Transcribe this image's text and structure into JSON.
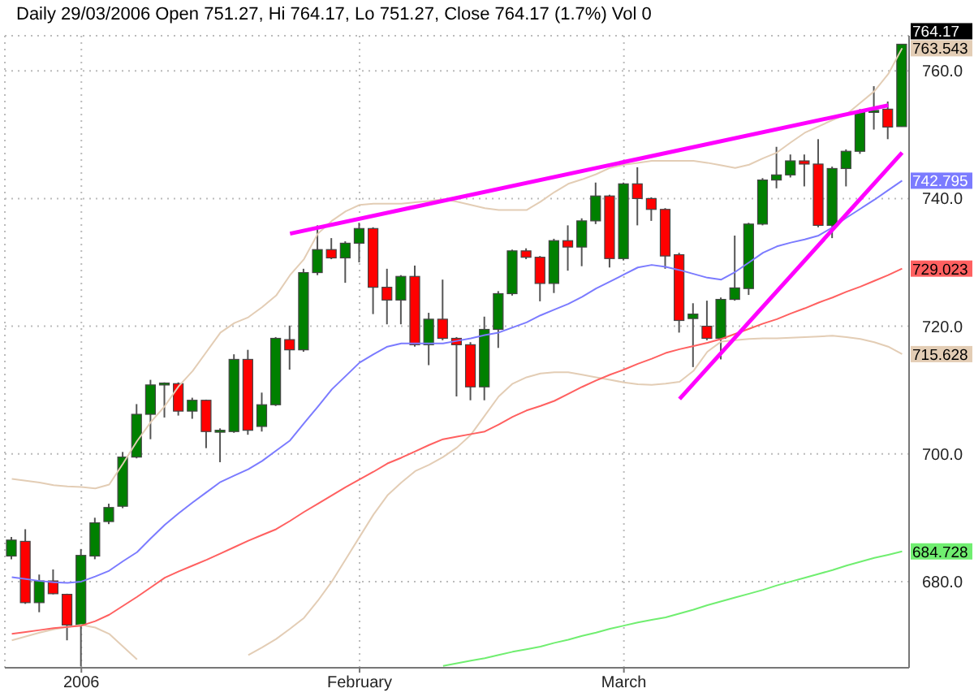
{
  "chart_data": {
    "type": "candlestick",
    "title": "Daily 29/03/2006 Open 751.27, Hi 764.17, Lo 751.27, Close 764.17 (1.7%) Vol 0",
    "categories": [
      null,
      null,
      null,
      null,
      null,
      "2006",
      null,
      null,
      null,
      null,
      null,
      null,
      null,
      null,
      null,
      null,
      null,
      null,
      null,
      null,
      null,
      null,
      null,
      null,
      null,
      "February",
      null,
      null,
      null,
      null,
      null,
      null,
      null,
      null,
      null,
      null,
      null,
      null,
      null,
      null,
      null,
      null,
      null,
      null,
      "March",
      null,
      null,
      null,
      null,
      null,
      null,
      null,
      null,
      null,
      null,
      null,
      null,
      null,
      null,
      null,
      null,
      null,
      null,
      null,
      null
    ],
    "ohlc": [
      [
        684.0,
        687.0,
        683.5,
        686.5
      ],
      [
        686.3,
        688.2,
        676.5,
        676.7
      ],
      [
        676.7,
        681.1,
        675.2,
        680.1
      ],
      [
        680.1,
        681.9,
        678.0,
        678.1
      ],
      [
        678.0,
        678.1,
        670.8,
        673.2
      ],
      [
        673.2,
        685.1,
        666.7,
        684.1
      ],
      [
        684.0,
        690.0,
        683.5,
        689.2
      ],
      [
        689.4,
        692.2,
        689.0,
        691.6
      ],
      [
        691.8,
        700.3,
        691.5,
        699.5
      ],
      [
        699.5,
        707.8,
        699.3,
        706.2
      ],
      [
        706.2,
        711.6,
        702.3,
        710.8
      ],
      [
        710.9,
        711.2,
        705.7,
        711.1
      ],
      [
        711.0,
        711.2,
        706.0,
        706.7
      ],
      [
        706.7,
        708.8,
        705.5,
        708.4
      ],
      [
        708.4,
        708.5,
        700.9,
        703.5
      ],
      [
        703.5,
        704.0,
        698.7,
        703.7
      ],
      [
        703.5,
        715.6,
        703.3,
        714.8
      ],
      [
        714.8,
        716.3,
        703.0,
        703.7
      ],
      [
        704.3,
        709.6,
        703.5,
        707.7
      ],
      [
        707.7,
        718.3,
        707.5,
        718.1
      ],
      [
        717.9,
        720.1,
        713.2,
        716.3
      ],
      [
        716.3,
        729.0,
        716.0,
        728.4
      ],
      [
        728.4,
        735.8,
        728.0,
        732.0
      ],
      [
        732.0,
        733.8,
        730.5,
        730.7
      ],
      [
        730.7,
        733.3,
        726.8,
        733.0
      ],
      [
        733.0,
        736.2,
        730.0,
        735.3
      ],
      [
        735.3,
        735.5,
        721.9,
        726.1
      ],
      [
        726.1,
        729.0,
        720.3,
        724.1
      ],
      [
        724.1,
        728.0,
        720.3,
        727.8
      ],
      [
        727.8,
        729.5,
        716.8,
        717.1
      ],
      [
        717.1,
        722.1,
        713.9,
        721.1
      ],
      [
        721.1,
        727.3,
        717.8,
        718.1
      ],
      [
        718.1,
        718.3,
        709.0,
        717.1
      ],
      [
        717.1,
        717.5,
        708.4,
        710.5
      ],
      [
        710.5,
        721.5,
        708.4,
        719.5
      ],
      [
        719.5,
        725.5,
        716.6,
        725.1
      ],
      [
        725.1,
        732.0,
        724.8,
        731.8
      ],
      [
        731.8,
        732.2,
        730.5,
        730.8
      ],
      [
        730.8,
        731.0,
        723.9,
        726.7
      ],
      [
        726.7,
        733.7,
        725.2,
        733.4
      ],
      [
        733.4,
        735.8,
        728.7,
        732.4
      ],
      [
        732.4,
        736.9,
        729.4,
        736.5
      ],
      [
        736.5,
        742.5,
        736.0,
        740.4
      ],
      [
        740.4,
        740.6,
        729.2,
        730.6
      ],
      [
        730.6,
        742.5,
        730.3,
        742.3
      ],
      [
        742.3,
        744.9,
        735.8,
        740.0
      ],
      [
        740.0,
        740.2,
        736.5,
        738.3
      ],
      [
        738.3,
        738.5,
        729.0,
        731.0
      ],
      [
        731.2,
        731.5,
        719.0,
        720.9
      ],
      [
        721.2,
        723.6,
        713.6,
        721.9
      ],
      [
        720.0,
        724.0,
        717.8,
        718.1
      ],
      [
        718.1,
        724.5,
        714.8,
        724.2
      ],
      [
        724.2,
        734.2,
        724.0,
        726.0
      ],
      [
        725.9,
        736.2,
        724.9,
        736.0
      ],
      [
        736.0,
        743.2,
        735.8,
        742.9
      ],
      [
        742.9,
        748.1,
        741.6,
        743.7
      ],
      [
        743.7,
        746.9,
        743.3,
        745.9
      ],
      [
        745.9,
        746.9,
        741.9,
        745.4
      ],
      [
        745.4,
        749.3,
        735.5,
        735.8
      ],
      [
        735.8,
        745.0,
        733.8,
        744.7
      ],
      [
        744.7,
        747.7,
        741.9,
        747.4
      ],
      [
        747.4,
        754.0,
        747.0,
        753.6
      ],
      [
        753.5,
        757.6,
        750.8,
        753.8
      ],
      [
        754.0,
        755.2,
        749.3,
        751.2
      ],
      [
        751.27,
        764.17,
        751.27,
        764.17
      ]
    ],
    "colors": [
      "#008000",
      "#ff0000",
      "#008000",
      "#ff0000",
      "#ff0000",
      "#008000",
      "#008000",
      "#008000",
      "#008000",
      "#008000",
      "#008000",
      "#008000",
      "#ff0000",
      "#008000",
      "#ff0000",
      "#008000",
      "#008000",
      "#ff0000",
      "#008000",
      "#008000",
      "#ff0000",
      "#008000",
      "#008000",
      "#ff0000",
      "#008000",
      "#008000",
      "#ff0000",
      "#ff0000",
      "#008000",
      "#ff0000",
      "#008000",
      "#ff0000",
      "#ff0000",
      "#ff0000",
      "#008000",
      "#008000",
      "#008000",
      "#ff0000",
      "#ff0000",
      "#008000",
      "#ff0000",
      "#008000",
      "#008000",
      "#ff0000",
      "#008000",
      "#ff0000",
      "#ff0000",
      "#ff0000",
      "#ff0000",
      "#008000",
      "#ff0000",
      "#008000",
      "#008000",
      "#008000",
      "#008000",
      "#008000",
      "#008000",
      "#ff0000",
      "#ff0000",
      "#008000",
      "#008000",
      "#008000",
      "#008000",
      "#ff0000",
      "#008000"
    ],
    "series": [
      {
        "type": "line",
        "color": "#e3cdb5",
        "values": [
          696.1,
          695.8,
          695.5,
          695.1,
          694.9,
          694.8,
          694.6,
          695.2,
          698.5,
          702.0,
          705.0,
          707.5,
          710.6,
          713.0,
          716.0,
          719.0,
          720.5,
          721.4,
          723.0,
          724.8,
          728.0,
          730.5,
          734.5,
          736.5,
          738.0,
          739.0,
          739.2,
          739.2,
          739.2,
          739.4,
          739.6,
          739.9,
          739.5,
          739.0,
          738.5,
          738.2,
          738.2,
          738.2,
          739.5,
          741.0,
          742.3,
          743.0,
          743.8,
          744.8,
          745.3,
          745.6,
          745.9,
          745.9,
          745.9,
          745.9,
          745.6,
          745.2,
          744.8,
          745.3,
          746.3,
          747.2,
          748.8,
          750.3,
          751.3,
          752.3,
          753.2,
          755.0,
          756.8,
          759.5,
          763.543
        ],
        "value_labels": [
          null,
          null,
          null,
          null,
          null,
          null,
          null,
          null,
          null,
          null,
          null,
          null,
          null,
          null,
          null,
          null,
          null,
          null,
          null,
          null,
          null,
          null,
          null,
          null,
          null,
          null,
          null,
          null,
          null,
          null,
          null,
          null,
          null,
          null,
          null,
          null,
          null,
          null,
          null,
          null,
          null,
          null,
          null,
          null,
          null,
          null,
          null,
          null,
          null,
          null,
          null,
          null,
          null,
          null,
          null,
          null,
          null,
          null,
          null,
          null,
          null,
          null,
          null,
          null,
          "763.543"
        ]
      },
      {
        "type": "line",
        "color": "#e3cdb5",
        "values": [
          670.8,
          671.4,
          672.0,
          672.5,
          672.9,
          673.2,
          672.8,
          671.8,
          669.8,
          667.8,
          null,
          null,
          null,
          null,
          null,
          null,
          null,
          668.5,
          669.7,
          671.0,
          672.6,
          674.3,
          677.0,
          680.0,
          683.5,
          687.0,
          690.5,
          693.5,
          695.5,
          697.3,
          698.3,
          699.5,
          701.0,
          703.0,
          706.0,
          709.0,
          711.0,
          712.0,
          712.6,
          712.8,
          712.8,
          712.4,
          712.0,
          711.6,
          711.2,
          710.9,
          710.8,
          711.0,
          711.3,
          713.0,
          716.0,
          717.6,
          717.8,
          718.0,
          718.1,
          718.1,
          718.2,
          718.3,
          718.4,
          718.5,
          718.3,
          718.0,
          717.5,
          716.8,
          715.628
        ],
        "value_labels": [
          null,
          null,
          null,
          null,
          null,
          null,
          null,
          null,
          null,
          null,
          null,
          null,
          null,
          null,
          null,
          null,
          null,
          null,
          null,
          null,
          null,
          null,
          null,
          null,
          null,
          null,
          null,
          null,
          null,
          null,
          null,
          null,
          null,
          null,
          null,
          null,
          null,
          null,
          null,
          null,
          null,
          null,
          null,
          null,
          null,
          null,
          null,
          null,
          null,
          null,
          null,
          null,
          null,
          null,
          null,
          null,
          null,
          null,
          null,
          null,
          null,
          null,
          null,
          null,
          "715.628"
        ]
      },
      {
        "type": "line",
        "color": "#7b7bff",
        "values": [
          680.7,
          680.4,
          680.1,
          679.9,
          679.8,
          680.0,
          680.8,
          681.7,
          683.2,
          684.6,
          686.8,
          688.9,
          690.7,
          692.4,
          694.0,
          695.6,
          696.6,
          697.6,
          698.9,
          700.5,
          702.1,
          704.8,
          707.4,
          710.1,
          712.2,
          714.3,
          715.6,
          716.8,
          717.3,
          717.3,
          717.3,
          717.3,
          717.7,
          718.1,
          718.6,
          719.0,
          719.8,
          720.6,
          721.7,
          722.6,
          723.5,
          724.6,
          725.9,
          727.0,
          728.1,
          729.2,
          729.6,
          729.3,
          728.8,
          728.2,
          727.6,
          727.3,
          728.5,
          730.0,
          731.5,
          732.5,
          733.1,
          733.6,
          734.2,
          735.5,
          737.0,
          738.4,
          739.8,
          741.3,
          742.795
        ],
        "value_labels": [
          null,
          null,
          null,
          null,
          null,
          null,
          null,
          null,
          null,
          null,
          null,
          null,
          null,
          null,
          null,
          null,
          null,
          null,
          null,
          null,
          null,
          null,
          null,
          null,
          null,
          null,
          null,
          null,
          null,
          null,
          null,
          null,
          null,
          null,
          null,
          null,
          null,
          null,
          null,
          null,
          null,
          null,
          null,
          null,
          null,
          null,
          null,
          null,
          null,
          null,
          null,
          null,
          null,
          null,
          null,
          null,
          null,
          null,
          null,
          null,
          null,
          null,
          null,
          null,
          "742.795"
        ]
      },
      {
        "type": "line",
        "color": "#ff6060",
        "values": [
          671.8,
          672.1,
          672.4,
          672.7,
          672.9,
          673.1,
          673.8,
          674.8,
          676.2,
          677.6,
          679.1,
          680.6,
          681.6,
          682.5,
          683.4,
          684.4,
          685.4,
          686.4,
          687.3,
          688.2,
          689.5,
          690.9,
          692.2,
          693.5,
          694.8,
          696.0,
          697.2,
          698.5,
          699.4,
          700.4,
          701.4,
          702.3,
          702.7,
          703.1,
          703.5,
          704.6,
          705.8,
          706.8,
          707.5,
          708.3,
          709.4,
          710.5,
          711.5,
          712.4,
          713.2,
          714.1,
          714.9,
          715.8,
          716.4,
          716.9,
          717.4,
          718.0,
          718.8,
          719.6,
          720.4,
          721.1,
          722.0,
          722.8,
          723.7,
          724.5,
          725.4,
          726.2,
          727.1,
          728.0,
          729.023
        ],
        "value_labels": [
          null,
          null,
          null,
          null,
          null,
          null,
          null,
          null,
          null,
          null,
          null,
          null,
          null,
          null,
          null,
          null,
          null,
          null,
          null,
          null,
          null,
          null,
          null,
          null,
          null,
          null,
          null,
          null,
          null,
          null,
          null,
          null,
          null,
          null,
          null,
          null,
          null,
          null,
          null,
          null,
          null,
          null,
          null,
          null,
          null,
          null,
          null,
          null,
          null,
          null,
          null,
          null,
          null,
          null,
          null,
          null,
          null,
          null,
          null,
          null,
          null,
          null,
          null,
          null,
          "729.023"
        ]
      },
      {
        "type": "line",
        "color": "#70ee70",
        "values": [
          null,
          null,
          null,
          null,
          null,
          null,
          null,
          null,
          null,
          null,
          null,
          null,
          null,
          null,
          null,
          null,
          null,
          null,
          null,
          null,
          null,
          null,
          null,
          null,
          null,
          null,
          null,
          null,
          null,
          null,
          null,
          666.8,
          667.2,
          667.6,
          668.0,
          668.5,
          669.0,
          669.4,
          669.8,
          670.4,
          670.9,
          671.5,
          672.0,
          672.6,
          673.1,
          673.6,
          674.0,
          674.4,
          675.0,
          675.6,
          676.3,
          676.9,
          677.5,
          678.1,
          678.7,
          679.4,
          680.0,
          680.6,
          681.2,
          681.8,
          682.5,
          683.1,
          683.7,
          684.2,
          684.728
        ],
        "value_labels": [
          null,
          null,
          null,
          null,
          null,
          null,
          null,
          null,
          null,
          null,
          null,
          null,
          null,
          null,
          null,
          null,
          null,
          null,
          null,
          null,
          null,
          null,
          null,
          null,
          null,
          null,
          null,
          null,
          null,
          null,
          null,
          null,
          null,
          null,
          null,
          null,
          null,
          null,
          null,
          null,
          null,
          null,
          null,
          null,
          null,
          null,
          null,
          null,
          null,
          null,
          null,
          null,
          null,
          null,
          null,
          null,
          null,
          null,
          null,
          null,
          null,
          null,
          null,
          null,
          "684.728"
        ]
      },
      {
        "type": "line",
        "color": "#ff00ff",
        "values": [
          null,
          null,
          null,
          null,
          null,
          null,
          null,
          null,
          null,
          null,
          null,
          null,
          null,
          null,
          null,
          null,
          null,
          null,
          null,
          null,
          734.5,
          null,
          null,
          null,
          null,
          null,
          null,
          null,
          null,
          null,
          null,
          null,
          null,
          null,
          null,
          null,
          null,
          null,
          null,
          null,
          null,
          null,
          null,
          null,
          null,
          null,
          null,
          null,
          null,
          null,
          null,
          null,
          null,
          null,
          null,
          null,
          null,
          null,
          null,
          null,
          null,
          null,
          null,
          754.6,
          null
        ]
      },
      {
        "type": "line",
        "color": "#ff00ff",
        "values": [
          null,
          null,
          null,
          null,
          null,
          null,
          null,
          null,
          null,
          null,
          null,
          null,
          null,
          null,
          null,
          null,
          null,
          null,
          null,
          null,
          null,
          null,
          null,
          null,
          null,
          null,
          null,
          null,
          null,
          null,
          null,
          null,
          null,
          null,
          null,
          null,
          null,
          null,
          null,
          null,
          null,
          null,
          null,
          null,
          null,
          null,
          null,
          null,
          708.6,
          null,
          null,
          null,
          null,
          null,
          null,
          null,
          null,
          null,
          null,
          null,
          null,
          null,
          null,
          null,
          747.2
        ]
      }
    ],
    "annotations": [
      "764.17"
    ],
    "ylim": [
      666.5,
      765.5
    ],
    "yticks": [
      {
        "value": 680,
        "label": "680.0"
      },
      {
        "value": 700,
        "label": "700.0"
      },
      {
        "value": 720,
        "label": "720.0"
      },
      {
        "value": 740,
        "label": "740.0"
      },
      {
        "value": 760,
        "label": "760.0"
      }
    ],
    "grid": true
  }
}
